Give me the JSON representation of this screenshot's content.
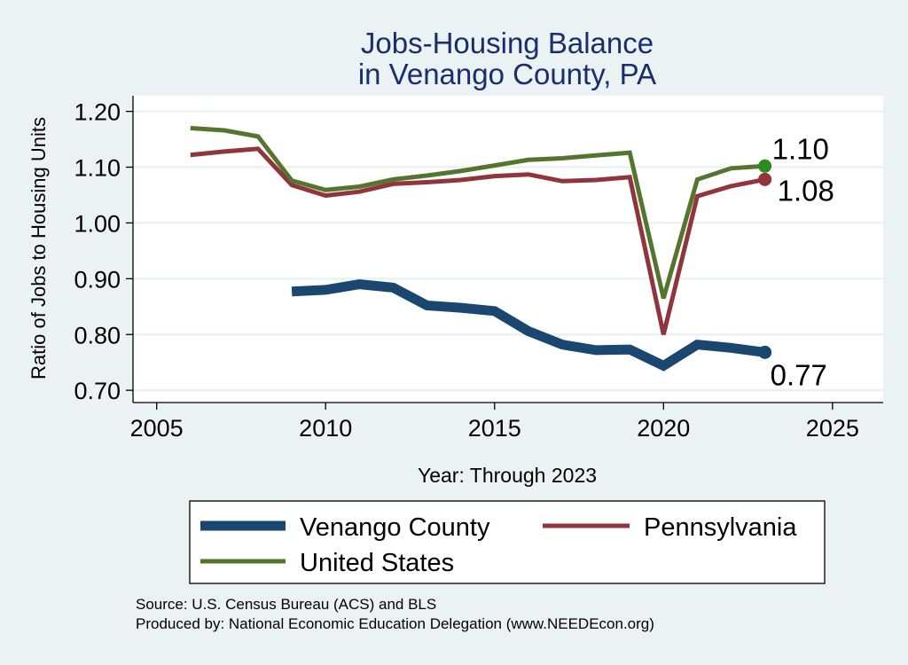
{
  "chart_data": {
    "type": "line",
    "title_lines": [
      "Jobs-Housing Balance",
      "in Venango County, PA"
    ],
    "xlabel": "Year: Through 2023",
    "ylabel": "Ratio of Jobs to Housing Units",
    "xlim": [
      2004.3,
      2026.5
    ],
    "ylim": [
      0.678,
      1.228
    ],
    "xticks": [
      2005,
      2010,
      2015,
      2020,
      2025
    ],
    "yticks": [
      0.7,
      0.8,
      0.9,
      1.0,
      1.1,
      1.2
    ],
    "ytick_labels": [
      "0.70",
      "0.80",
      "0.90",
      "1.00",
      "1.10",
      "1.20"
    ],
    "grid": true,
    "series": [
      {
        "name": "Venango County",
        "color": "#1a476f",
        "x": [
          2009,
          2010,
          2011,
          2012,
          2013,
          2014,
          2015,
          2016,
          2017,
          2018,
          2019,
          2020,
          2021,
          2022,
          2023
        ],
        "values": [
          0.877,
          0.88,
          0.89,
          0.884,
          0.852,
          0.848,
          0.842,
          0.806,
          0.782,
          0.772,
          0.773,
          0.744,
          0.782,
          0.776,
          0.768
        ],
        "end_label": "0.77"
      },
      {
        "name": "Pennsylvania",
        "color": "#90353b",
        "x": [
          2006,
          2007,
          2008,
          2009,
          2010,
          2011,
          2012,
          2013,
          2014,
          2015,
          2016,
          2017,
          2018,
          2019,
          2020,
          2021,
          2022,
          2023
        ],
        "values": [
          1.122,
          1.128,
          1.133,
          1.068,
          1.049,
          1.056,
          1.07,
          1.073,
          1.077,
          1.084,
          1.087,
          1.075,
          1.077,
          1.082,
          0.8,
          1.048,
          1.066,
          1.078
        ],
        "end_label": "1.08"
      },
      {
        "name": "United States",
        "color": "#55752f",
        "x": [
          2006,
          2007,
          2008,
          2009,
          2010,
          2011,
          2012,
          2013,
          2014,
          2015,
          2016,
          2017,
          2018,
          2019,
          2020,
          2021,
          2022,
          2023
        ],
        "values": [
          1.17,
          1.166,
          1.155,
          1.076,
          1.059,
          1.065,
          1.078,
          1.085,
          1.093,
          1.103,
          1.113,
          1.116,
          1.121,
          1.126,
          0.865,
          1.078,
          1.098,
          1.102
        ],
        "end_label": "1.10"
      }
    ],
    "end_markers": [
      {
        "series": "United States",
        "x": 2023,
        "value": 1.102,
        "color": "#2e8b1e"
      },
      {
        "series": "Pennsylvania",
        "x": 2023,
        "value": 1.078,
        "color": "#90353b"
      },
      {
        "series": "Venango County",
        "x": 2023,
        "value": 0.768,
        "color": "#1a476f"
      }
    ],
    "legend": [
      {
        "name": "Venango County",
        "color": "#1a476f"
      },
      {
        "name": "Pennsylvania",
        "color": "#90353b"
      },
      {
        "name": "United States",
        "color": "#55752f"
      }
    ],
    "legend_position": "bottom",
    "footer_lines": [
      "Source: U.S. Census Bureau (ACS) and BLS",
      "Produced by: National Economic Education Delegation (www.NEEDEcon.org)"
    ]
  }
}
